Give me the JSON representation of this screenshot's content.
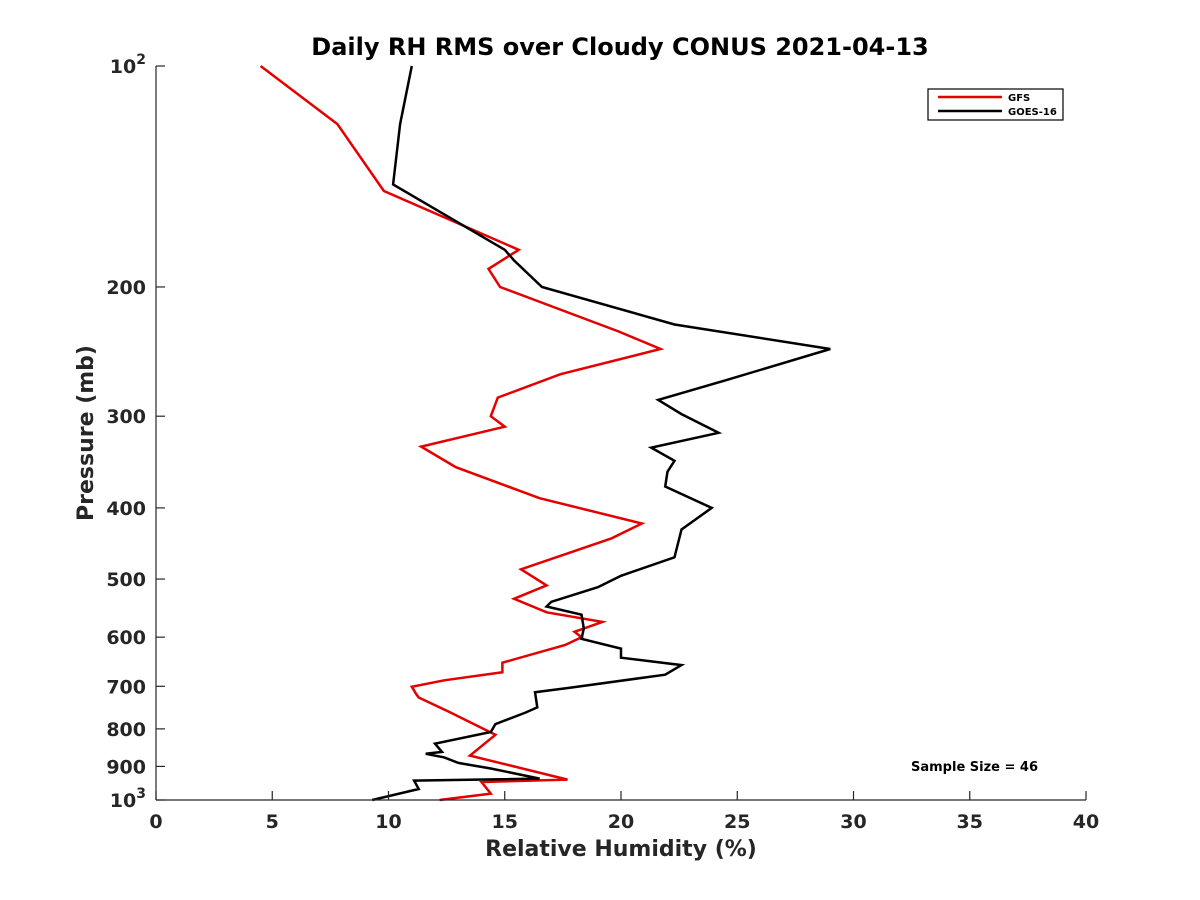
{
  "chart_data": {
    "type": "line",
    "title": "Daily RH RMS over Cloudy CONUS 2021-04-13",
    "xlabel": "Relative Humidity (%)",
    "ylabel": "Pressure (mb)",
    "xlim": [
      0,
      40
    ],
    "ylim": [
      100,
      1000
    ],
    "y_scale": "log",
    "y_reversed": true,
    "grid": false,
    "legend_position": "top-right",
    "x_ticks": [
      "0",
      "5",
      "10",
      "15",
      "20",
      "25",
      "30",
      "35",
      "40"
    ],
    "y_ticks": [
      {
        "value": 100,
        "label": "10",
        "sup": "2"
      },
      {
        "value": 200,
        "label": "200",
        "sup": ""
      },
      {
        "value": 300,
        "label": "300",
        "sup": ""
      },
      {
        "value": 400,
        "label": "400",
        "sup": ""
      },
      {
        "value": 500,
        "label": "500",
        "sup": ""
      },
      {
        "value": 600,
        "label": "600",
        "sup": ""
      },
      {
        "value": 700,
        "label": "700",
        "sup": ""
      },
      {
        "value": 800,
        "label": "800",
        "sup": ""
      },
      {
        "value": 900,
        "label": "900",
        "sup": ""
      },
      {
        "value": 1000,
        "label": "10",
        "sup": "3"
      }
    ],
    "series": [
      {
        "name": "GFS",
        "color": "#e50000",
        "x": [
          4.5,
          7.8,
          9.8,
          15.6,
          14.3,
          14.8,
          19.9,
          21.7,
          17.4,
          14.7,
          14.4,
          15.0,
          11.4,
          12.9,
          16.5,
          20.9,
          19.6,
          15.7,
          16.8,
          15.4,
          16.8,
          19.2,
          18.0,
          18.3,
          17.6,
          14.9,
          14.9,
          12.4,
          11.0,
          11.2,
          11.3,
          12.6,
          14.6,
          14.5,
          13.5,
          17.7,
          14.0,
          14.4,
          12.2
        ],
        "y": [
          100,
          120,
          148,
          178,
          189,
          200,
          230,
          243,
          263,
          283,
          300,
          310,
          330,
          352,
          388,
          420,
          440,
          485,
          510,
          532,
          555,
          572,
          590,
          600,
          615,
          650,
          670,
          687,
          701,
          718,
          725,
          758,
          815,
          820,
          870,
          938,
          945,
          980,
          1000
        ]
      },
      {
        "name": "GOES-16",
        "color": "#000000",
        "x": [
          11.0,
          10.5,
          10.2,
          15.0,
          15.4,
          16.6,
          22.3,
          29.0,
          24.5,
          21.6,
          22.6,
          24.2,
          21.3,
          22.3,
          22.0,
          21.9,
          23.9,
          22.6,
          22.3,
          20.0,
          19.0,
          17.0,
          16.8,
          18.3,
          18.4,
          18.3,
          20.0,
          20.0,
          22.6,
          21.9,
          17.8,
          16.3,
          16.4,
          15.9,
          14.6,
          14.4,
          12.0,
          12.3,
          11.6,
          12.4,
          13.0,
          14.4,
          16.5,
          11.1,
          11.3,
          9.3
        ],
        "y": [
          100,
          120,
          145,
          178,
          184,
          200,
          225,
          243,
          268,
          285,
          298,
          316,
          331,
          345,
          357,
          374,
          400,
          428,
          467,
          495,
          513,
          537,
          545,
          559,
          584,
          603,
          622,
          640,
          655,
          675,
          703,
          713,
          748,
          760,
          788,
          808,
          838,
          860,
          865,
          875,
          890,
          906,
          935,
          941,
          966,
          1000
        ]
      }
    ],
    "annotations": [
      {
        "text": "Sample Size = 46"
      }
    ]
  }
}
